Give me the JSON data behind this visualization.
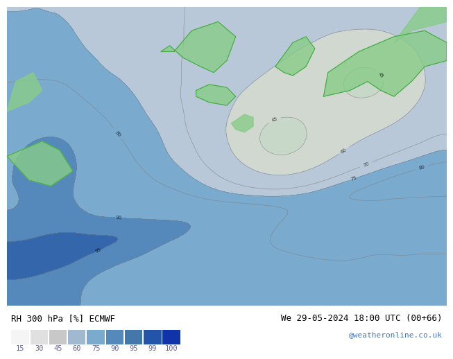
{
  "title_left": "RH 300 hPa [%] ECMWF",
  "title_right": "We 29-05-2024 18:00 UTC (00+66)",
  "credit": "@weatheronline.co.uk",
  "legend_values": [
    15,
    30,
    45,
    60,
    75,
    90,
    95,
    99,
    100
  ],
  "legend_colors": [
    "#ffffff",
    "#e8e8e8",
    "#d0d0d0",
    "#b8b8b8",
    "#adc8e8",
    "#6699cc",
    "#4477bb",
    "#2255aa",
    "#1133aa"
  ],
  "bg_color": "#ffffff",
  "map_bg": "#f0f0f0",
  "fig_width": 6.34,
  "fig_height": 4.9
}
